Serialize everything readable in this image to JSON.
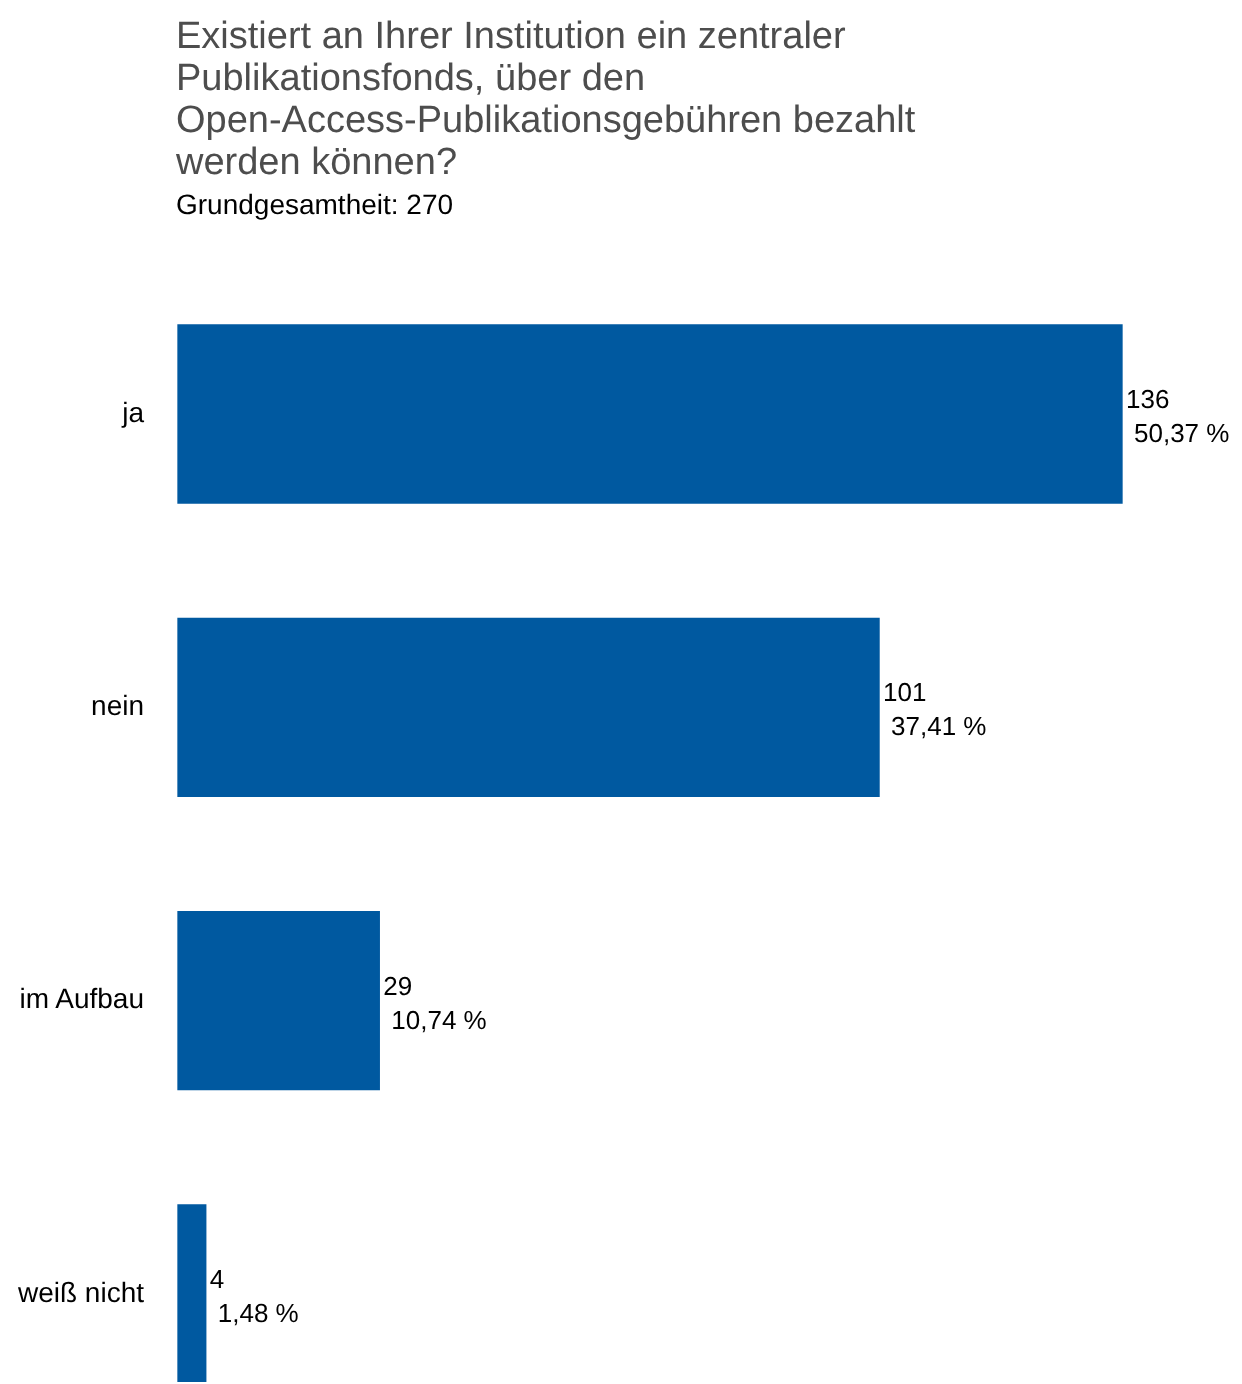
{
  "chart_data": {
    "type": "bar",
    "orientation": "horizontal",
    "title": "Existiert an Ihrer Institution ein zentraler Publikationsfonds, über den Open-Access-Publikationsgebühren bezahlt werden können?",
    "subtitle": "Grundgesamtheit: 270",
    "categories": [
      "ja",
      "nein",
      "im Aufbau",
      "weiß nicht"
    ],
    "values": [
      136,
      101,
      29,
      4
    ],
    "value_labels": [
      "136\n50,37 %",
      "101\n37,41 %",
      "29\n10,74 %",
      "4\n1,48 %"
    ],
    "color": "#0059a0"
  }
}
